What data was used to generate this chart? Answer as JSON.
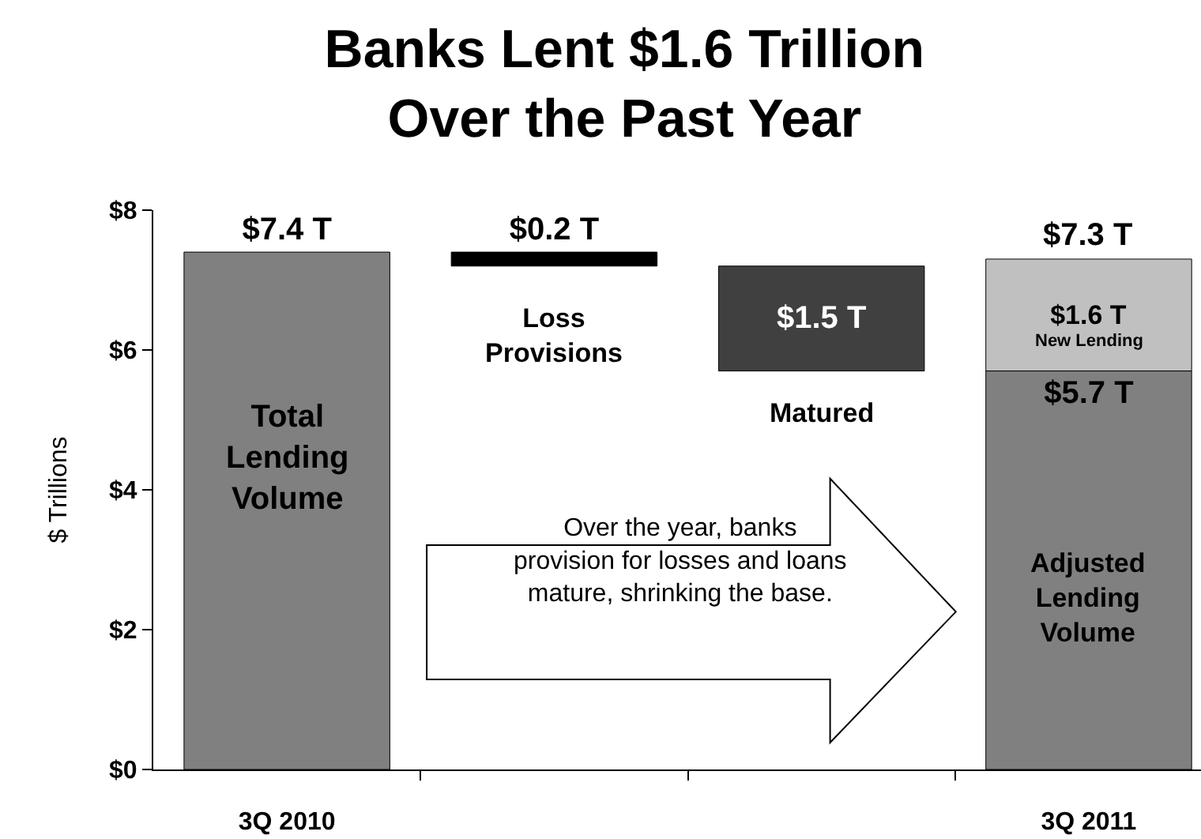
{
  "chart_data": {
    "type": "bar",
    "title": "Banks Lent $1.6 Trillion\nOver the Past Year",
    "ylabel": "$ Trillions",
    "categories": [
      "3Q 2010",
      null,
      null,
      "3Q 2011"
    ],
    "series": [
      {
        "values": [
          7.4,
          0.2,
          1.5,
          5.7
        ],
        "base": [
          0,
          7.2,
          5.7,
          0
        ],
        "colors": [
          "#808080",
          "#000000",
          "#404040",
          "#808080"
        ],
        "value_labels": [
          "$7.4 T",
          "$0.2 T",
          "$1.5 T",
          "$5.7 T"
        ]
      },
      {
        "values": [
          null,
          null,
          null,
          1.6
        ],
        "base": [
          null,
          null,
          null,
          5.7
        ],
        "color": "#c0c0c0",
        "value_labels": [
          null,
          null,
          null,
          "$1.6 T"
        ]
      }
    ],
    "totals": [
      null,
      null,
      null,
      "$7.3 T"
    ],
    "ylim": [
      0,
      8
    ],
    "yticks": [
      {
        "value": 0,
        "label": "$0"
      },
      {
        "value": 2,
        "label": "$2"
      },
      {
        "value": 4,
        "label": "$4"
      },
      {
        "value": 6,
        "label": "$6"
      },
      {
        "value": 8,
        "label": "$8"
      }
    ],
    "grid": false,
    "annotations": [
      "Total\nLending\nVolume",
      "Loss\nProvisions",
      "Matured",
      "New Lending",
      "Adjusted\nLending\nVolume",
      "Over the year, banks\nprovision for losses and loans\nmature, shrinking the base."
    ]
  }
}
